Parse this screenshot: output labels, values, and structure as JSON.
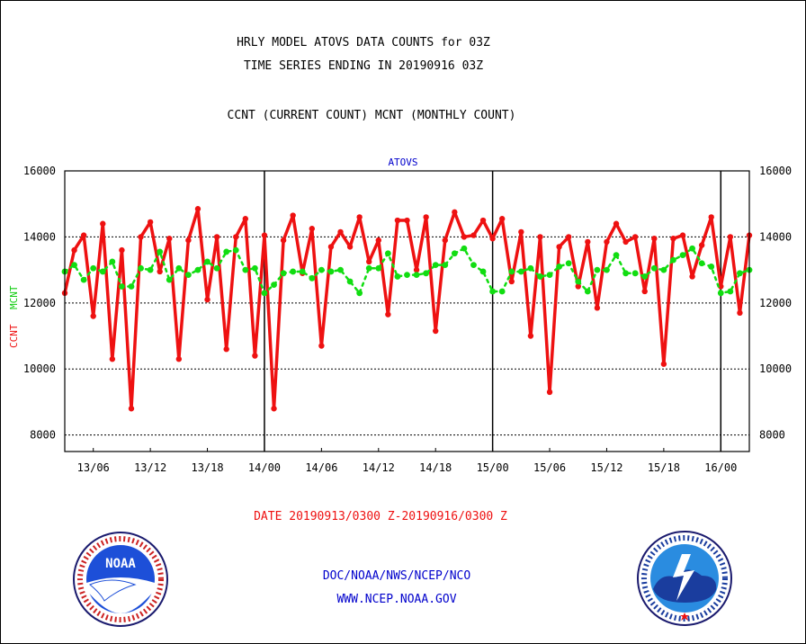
{
  "header": {
    "line1": "HRLY MODEL ATOVS DATA COUNTS for 03Z",
    "line2": "TIME SERIES ENDING IN 20190916 03Z",
    "line3": "CCNT (CURRENT COUNT) MCNT (MONTHLY COUNT)"
  },
  "footer": {
    "date_range": "DATE 20190913/0300 Z-20190916/0300 Z",
    "org": "DOC/NOAA/NWS/NCEP/NCO",
    "url": "WWW.NCEP.NOAA.GOV"
  },
  "logos": {
    "noaa_text": "NOAA",
    "noaa_ring": "NATIONAL OCEANIC AND ATMOSPHERIC ADMINISTRATION · U.S. DEPARTMENT OF COMMERCE",
    "nws_ring": "NATIONAL WEATHER SERVICE"
  },
  "colors": {
    "ccnt": "#ee1111",
    "mcnt": "#11dd11",
    "title": "#0000cc",
    "text": "#000000"
  },
  "chart_data": {
    "type": "line",
    "title": "ATOVS",
    "ylabel_left": [
      "CCNT",
      "MCNT"
    ],
    "ylim": [
      7500,
      16000
    ],
    "yticks": [
      8000,
      10000,
      12000,
      14000,
      16000
    ],
    "xlim": [
      0,
      72
    ],
    "xticks": [
      {
        "label": "13/06",
        "x": 3
      },
      {
        "label": "13/12",
        "x": 9
      },
      {
        "label": "13/18",
        "x": 15
      },
      {
        "label": "14/00",
        "x": 21
      },
      {
        "label": "14/06",
        "x": 27
      },
      {
        "label": "14/12",
        "x": 33
      },
      {
        "label": "14/18",
        "x": 39
      },
      {
        "label": "15/00",
        "x": 45
      },
      {
        "label": "15/06",
        "x": 51
      },
      {
        "label": "15/12",
        "x": 57
      },
      {
        "label": "15/18",
        "x": 63
      },
      {
        "label": "16/00",
        "x": 69
      }
    ],
    "day_boundaries": [
      21,
      45,
      69
    ],
    "grid": "horizontal dotted",
    "series": [
      {
        "name": "CCNT",
        "values": [
          12300,
          13600,
          14050,
          11600,
          14400,
          10300,
          13600,
          8800,
          14000,
          14450,
          12950,
          13950,
          10300,
          13900,
          14850,
          12100,
          14000,
          10600,
          14000,
          14550,
          10400,
          14050,
          8800,
          13900,
          14650,
          12900,
          14250,
          10700,
          13700,
          14150,
          13700,
          14600,
          13250,
          13900,
          11650,
          14500,
          14500,
          13000,
          14600,
          11150,
          13900,
          14750,
          14000,
          14050,
          14500,
          13950,
          14550,
          12650,
          14150,
          11000,
          14000,
          9300,
          13700,
          14000,
          12500,
          13850,
          11850,
          13850,
          14400,
          13850,
          14000,
          12350,
          13950,
          10150,
          13950,
          14050,
          12800,
          13750,
          14600,
          12500,
          14000,
          11700,
          14050
        ]
      },
      {
        "name": "MCNT",
        "values": [
          12950,
          13150,
          12700,
          13050,
          12950,
          13250,
          12500,
          12500,
          13050,
          13000,
          13550,
          12700,
          13050,
          12850,
          13000,
          13250,
          13050,
          13550,
          13600,
          13000,
          13050,
          12300,
          12550,
          12900,
          12950,
          12950,
          12750,
          13000,
          12950,
          13000,
          12650,
          12300,
          13050,
          13050,
          13500,
          12800,
          12850,
          12850,
          12900,
          13150,
          13150,
          13500,
          13650,
          13150,
          12950,
          12350,
          12350,
          12950,
          12950,
          13050,
          12800,
          12850,
          13100,
          13200,
          12650,
          12350,
          13000,
          13000,
          13450,
          12900,
          12900,
          12800,
          13050,
          13000,
          13300,
          13450,
          13650,
          13200,
          13100,
          12300,
          12350,
          12900,
          13000
        ]
      }
    ]
  }
}
